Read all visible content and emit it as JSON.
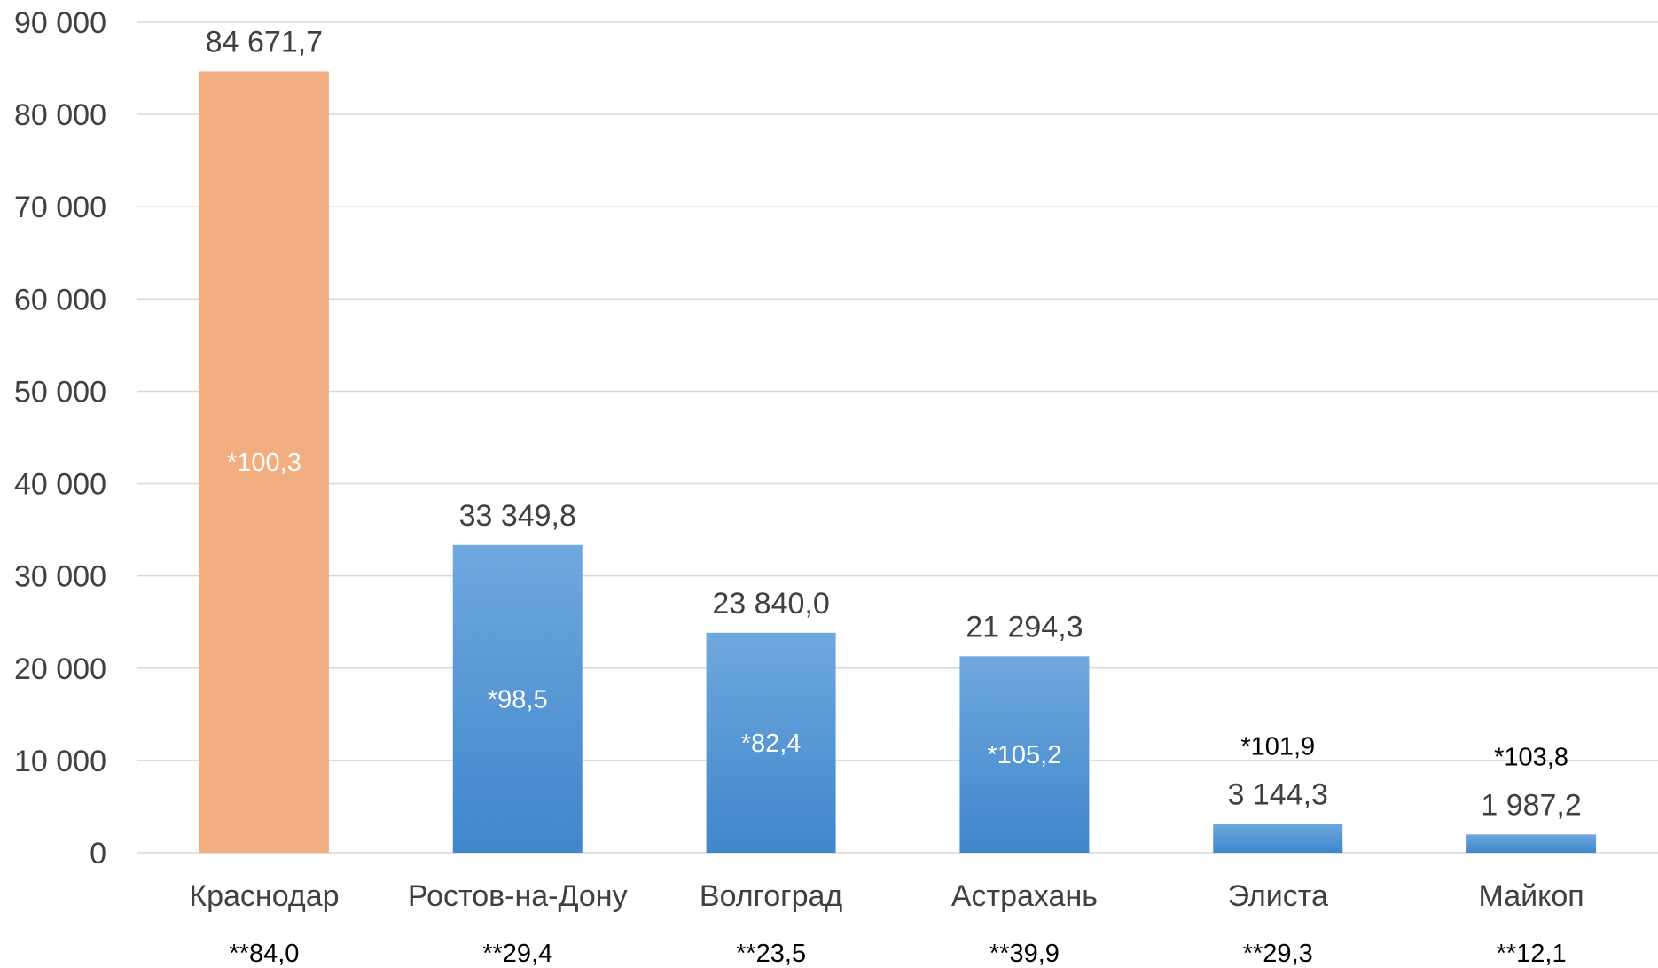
{
  "chart_data": {
    "type": "bar",
    "title": "",
    "xlabel": "",
    "ylabel": "",
    "ylim": [
      0,
      90000
    ],
    "grid": true,
    "yticks": [
      "0",
      "10 000",
      "20 000",
      "30 000",
      "40 000",
      "50 000",
      "60 000",
      "70 000",
      "80 000",
      "90 000"
    ],
    "categories": [
      "Краснодар",
      "Ростов-на-Дону",
      "Волгоград",
      "Астрахань",
      "Элиста",
      "Майкоп"
    ],
    "values": [
      84671.7,
      33349.8,
      23840.0,
      21294.3,
      3144.3,
      1987.2
    ],
    "value_labels": [
      "84 671,7",
      "33 349,8",
      "23 840,0",
      "21 294,3",
      "3 144,3",
      "1 987,2"
    ],
    "index_labels": [
      "*100,3",
      "*98,5",
      "*82,4",
      "*105,2",
      "*101,9",
      "*103,8"
    ],
    "share_labels": [
      "**84,0",
      "**29,4",
      "**23,5",
      "**39,9",
      "**29,3",
      "**12,1"
    ],
    "colors": {
      "highlight": "#F2AE80",
      "bar_top": "#6FA8DE",
      "bar_bottom": "#3F86CB",
      "grid": "#D9D9D9",
      "text": "#404040"
    }
  }
}
